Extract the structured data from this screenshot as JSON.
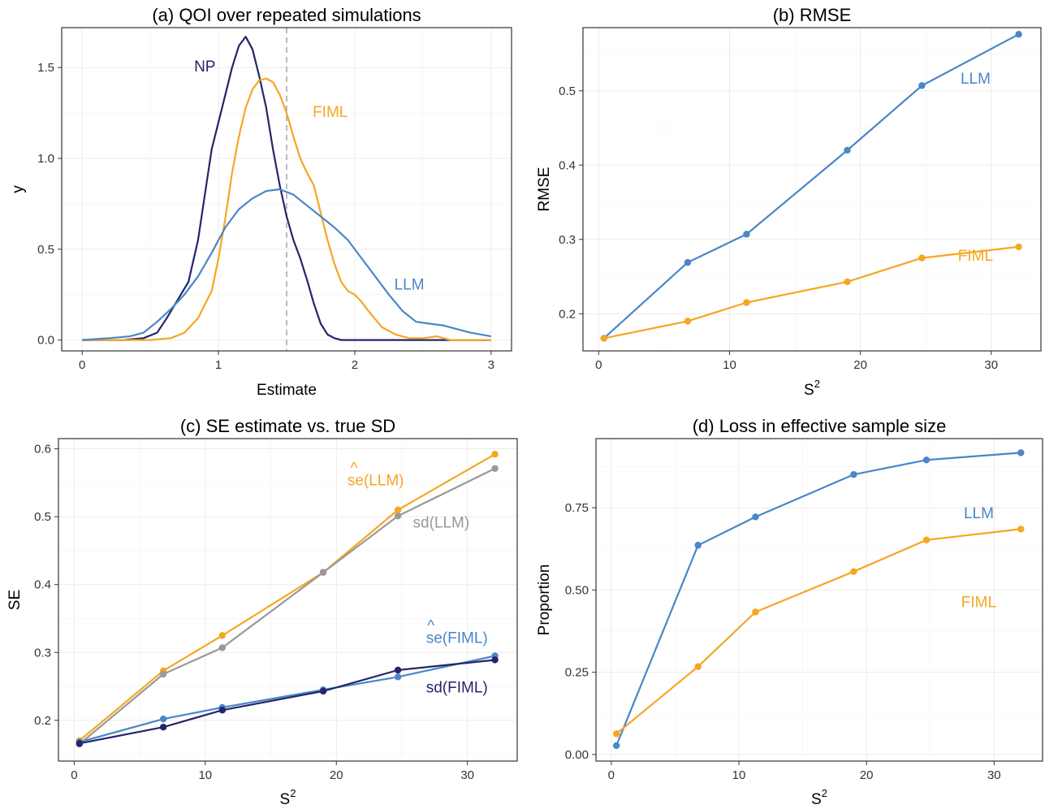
{
  "colors": {
    "orange": "#f5a623",
    "blue": "#4a86c8",
    "navy": "#25256b",
    "gray": "#999999",
    "ref_line": "#bbbbbb"
  },
  "chart_data": [
    {
      "id": "a",
      "type": "line",
      "title": "(a) QOI over repeated simulations",
      "xlabel": "Estimate",
      "ylabel": "y",
      "xlim": [
        -0.15,
        3.15
      ],
      "ylim": [
        -0.06,
        1.72
      ],
      "xticks": [
        0,
        1,
        2,
        3
      ],
      "yticks": [
        0.0,
        0.5,
        1.0,
        1.5
      ],
      "ytick_labels": [
        "0.0",
        "0.5",
        "1.0",
        "1.5"
      ],
      "grid": true,
      "reference_line": {
        "x": 1.5,
        "style": "dashed"
      },
      "series": [
        {
          "name": "NP",
          "color": "navy",
          "label_at": [
            0.9,
            1.5
          ],
          "x": [
            0.0,
            0.3,
            0.45,
            0.55,
            0.62,
            0.7,
            0.78,
            0.85,
            0.9,
            0.95,
            1.0,
            1.05,
            1.1,
            1.15,
            1.2,
            1.25,
            1.3,
            1.35,
            1.4,
            1.45,
            1.5,
            1.55,
            1.6,
            1.65,
            1.7,
            1.75,
            1.8,
            1.85,
            1.9,
            2.0,
            2.2,
            3.0
          ],
          "y": [
            0.0,
            0.0,
            0.01,
            0.04,
            0.12,
            0.22,
            0.32,
            0.55,
            0.8,
            1.05,
            1.2,
            1.35,
            1.5,
            1.62,
            1.67,
            1.6,
            1.45,
            1.28,
            1.05,
            0.85,
            0.68,
            0.55,
            0.45,
            0.33,
            0.2,
            0.09,
            0.03,
            0.01,
            0.0,
            0.0,
            0.0,
            0.0
          ]
        },
        {
          "name": "FIML",
          "color": "orange",
          "label_at": [
            1.82,
            1.25
          ],
          "x": [
            0.0,
            0.5,
            0.65,
            0.75,
            0.85,
            0.95,
            1.0,
            1.05,
            1.1,
            1.15,
            1.2,
            1.25,
            1.3,
            1.35,
            1.4,
            1.45,
            1.5,
            1.55,
            1.6,
            1.65,
            1.7,
            1.75,
            1.8,
            1.85,
            1.9,
            1.95,
            2.0,
            2.05,
            2.1,
            2.2,
            2.3,
            2.4,
            2.5,
            2.6,
            2.7,
            2.8,
            3.0
          ],
          "y": [
            0.0,
            0.0,
            0.01,
            0.04,
            0.12,
            0.27,
            0.45,
            0.67,
            0.92,
            1.12,
            1.28,
            1.38,
            1.43,
            1.44,
            1.42,
            1.35,
            1.25,
            1.12,
            1.0,
            0.92,
            0.85,
            0.7,
            0.55,
            0.42,
            0.32,
            0.27,
            0.25,
            0.21,
            0.16,
            0.07,
            0.03,
            0.01,
            0.01,
            0.02,
            0.0,
            0.0,
            0.0
          ]
        },
        {
          "name": "LLM",
          "color": "blue",
          "label_at": [
            2.4,
            0.3
          ],
          "x": [
            0.0,
            0.2,
            0.35,
            0.45,
            0.55,
            0.65,
            0.75,
            0.85,
            0.95,
            1.05,
            1.15,
            1.25,
            1.35,
            1.45,
            1.55,
            1.65,
            1.75,
            1.85,
            1.95,
            2.05,
            2.15,
            2.25,
            2.35,
            2.45,
            2.55,
            2.65,
            2.75,
            2.85,
            3.0
          ],
          "y": [
            0.0,
            0.01,
            0.02,
            0.04,
            0.1,
            0.17,
            0.25,
            0.35,
            0.48,
            0.62,
            0.72,
            0.78,
            0.82,
            0.83,
            0.8,
            0.74,
            0.68,
            0.62,
            0.55,
            0.45,
            0.35,
            0.25,
            0.16,
            0.1,
            0.09,
            0.08,
            0.06,
            0.04,
            0.02
          ]
        }
      ]
    },
    {
      "id": "b",
      "type": "line",
      "title": "(b) RMSE",
      "xlabel": "S",
      "xlabel_sup": "2",
      "ylabel": "RMSE",
      "xlim": [
        -1.2,
        33.8
      ],
      "ylim": [
        0.15,
        0.585
      ],
      "xticks": [
        0,
        10,
        20,
        30
      ],
      "yticks": [
        0.2,
        0.3,
        0.4,
        0.5
      ],
      "ytick_labels": [
        "0.2",
        "0.3",
        "0.4",
        "0.5"
      ],
      "grid": true,
      "series": [
        {
          "name": "LLM",
          "color": "blue",
          "label_at": [
            28.8,
            0.515
          ],
          "x": [
            0.4,
            6.8,
            11.3,
            19.0,
            24.7,
            32.1
          ],
          "y": [
            0.167,
            0.269,
            0.307,
            0.42,
            0.507,
            0.576
          ]
        },
        {
          "name": "FIML",
          "color": "orange",
          "label_at": [
            28.8,
            0.277
          ],
          "x": [
            0.4,
            6.8,
            11.3,
            19.0,
            24.7,
            32.1
          ],
          "y": [
            0.167,
            0.19,
            0.215,
            0.243,
            0.275,
            0.29
          ]
        }
      ]
    },
    {
      "id": "c",
      "type": "line",
      "title": "(c) SE estimate vs. true SD",
      "xlabel": "S",
      "xlabel_sup": "2",
      "ylabel": "SE",
      "xlim": [
        -1.2,
        33.8
      ],
      "ylim": [
        0.14,
        0.615
      ],
      "xticks": [
        0,
        10,
        20,
        30
      ],
      "yticks": [
        0.2,
        0.3,
        0.4,
        0.5,
        0.6
      ],
      "ytick_labels": [
        "0.2",
        "0.3",
        "0.4",
        "0.5",
        "0.6"
      ],
      "grid": true,
      "series": [
        {
          "name": "se(LLM)",
          "hat": true,
          "color": "orange",
          "label_at": [
            23.0,
            0.552
          ],
          "x": [
            0.4,
            6.8,
            11.3,
            19.0,
            24.7,
            32.1
          ],
          "y": [
            0.17,
            0.273,
            0.325,
            0.418,
            0.51,
            0.592
          ]
        },
        {
          "name": "sd(LLM)",
          "color": "gray",
          "label_at": [
            28.0,
            0.49
          ],
          "x": [
            0.4,
            6.8,
            11.3,
            19.0,
            24.7,
            32.1
          ],
          "y": [
            0.165,
            0.268,
            0.307,
            0.418,
            0.501,
            0.571
          ]
        },
        {
          "name": "se(FIML)",
          "hat": true,
          "color": "blue",
          "label_at": [
            29.2,
            0.32
          ],
          "x": [
            0.4,
            6.8,
            11.3,
            19.0,
            24.7,
            32.1
          ],
          "y": [
            0.168,
            0.202,
            0.219,
            0.245,
            0.264,
            0.295
          ]
        },
        {
          "name": "sd(FIML)",
          "color": "navy",
          "label_at": [
            29.2,
            0.247
          ],
          "x": [
            0.4,
            6.8,
            11.3,
            19.0,
            24.7,
            32.1
          ],
          "y": [
            0.166,
            0.19,
            0.215,
            0.243,
            0.274,
            0.289
          ]
        }
      ]
    },
    {
      "id": "d",
      "type": "line",
      "title": "(d) Loss in effective sample size",
      "xlabel": "S",
      "xlabel_sup": "2",
      "ylabel": "Proportion",
      "xlim": [
        -1.2,
        33.8
      ],
      "ylim": [
        -0.02,
        0.96
      ],
      "xticks": [
        0,
        10,
        20,
        30
      ],
      "yticks": [
        0.0,
        0.25,
        0.5,
        0.75
      ],
      "ytick_labels": [
        "0.00",
        "0.25",
        "0.50",
        "0.75"
      ],
      "grid": true,
      "series": [
        {
          "name": "LLM",
          "color": "blue",
          "label_at": [
            28.8,
            0.73
          ],
          "x": [
            0.4,
            6.8,
            11.3,
            19.0,
            24.7,
            32.1
          ],
          "y": [
            0.027,
            0.636,
            0.722,
            0.851,
            0.895,
            0.917
          ]
        },
        {
          "name": "FIML",
          "color": "orange",
          "label_at": [
            28.8,
            0.46
          ],
          "x": [
            0.4,
            6.8,
            11.3,
            19.0,
            24.7,
            32.1
          ],
          "y": [
            0.063,
            0.267,
            0.433,
            0.556,
            0.652,
            0.685
          ]
        }
      ]
    }
  ]
}
